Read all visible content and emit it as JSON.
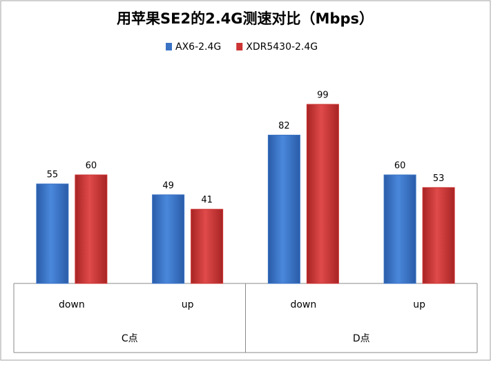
{
  "chart_data": {
    "type": "bar",
    "title": "用苹果SE2的2.4G测速对比（Mbps）",
    "groups": [
      {
        "label": "C点",
        "categories": [
          "down",
          "up"
        ]
      },
      {
        "label": "D点",
        "categories": [
          "down",
          "up"
        ]
      }
    ],
    "series": [
      {
        "name": "AX6-2.4G",
        "color": "#3a73c4",
        "values": [
          55,
          49,
          82,
          60
        ]
      },
      {
        "name": "XDR5430-2.4G",
        "color": "#cc3333",
        "values": [
          60,
          41,
          99,
          53
        ]
      }
    ],
    "ylim": [
      0,
      120
    ],
    "legend": "top"
  }
}
